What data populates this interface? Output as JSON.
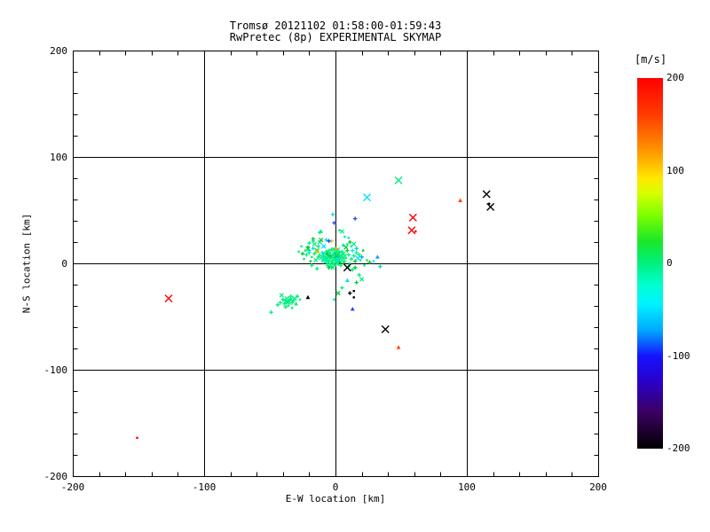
{
  "header": {
    "title": "Tromsø 20121102 01:58:00-01:59:43",
    "subtitle": "RwPretec (8p) EXPERIMENTAL SKYMAP"
  },
  "chart_data": {
    "type": "scatter",
    "title": "Tromsø 20121102 01:58:00-01:59:43",
    "subtitle": "RwPretec (8p) EXPERIMENTAL SKYMAP",
    "xlabel": "E-W location [km]",
    "ylabel": "N-S location [km]",
    "xlim": [
      -200,
      200
    ],
    "ylim": [
      -200,
      200
    ],
    "xticks": [
      -200,
      -100,
      0,
      100,
      200
    ],
    "yticks": [
      -200,
      -100,
      0,
      100,
      200
    ],
    "minor_tick_step": 20,
    "grid": true,
    "grid_lines_x": [
      -100,
      0,
      100
    ],
    "grid_lines_y": [
      -100,
      0,
      100
    ],
    "colorbar": {
      "label": "[m/s]",
      "lim": [
        -200,
        200
      ],
      "ticks": [
        200,
        100,
        0,
        -100,
        -200
      ],
      "stops": [
        [
          0,
          "#FF0000"
        ],
        [
          10,
          "#FF3C00"
        ],
        [
          20,
          "#FF9A00"
        ],
        [
          27,
          "#FFE700"
        ],
        [
          31,
          "#D8FF00"
        ],
        [
          37,
          "#7CFF00"
        ],
        [
          44,
          "#1BE729"
        ],
        [
          50,
          "#00F07E"
        ],
        [
          56,
          "#00FFD2"
        ],
        [
          61,
          "#00F2FF"
        ],
        [
          68,
          "#00AAFF"
        ],
        [
          75,
          "#1414FF"
        ],
        [
          82,
          "#2A00C8"
        ],
        [
          90,
          "#3C0064"
        ],
        [
          100,
          "#000000"
        ]
      ]
    },
    "palette": {
      "sg": "#00F07E",
      "gn": "#00C832",
      "cy": "#00E0FF",
      "te": "#00DCA8",
      "lb": "#00A0FF",
      "bl": "#2244FF",
      "bk": "#000000",
      "rd": "#FF0000",
      "ro": "#FF4500",
      "or": "#FFA000",
      "yl": "#CCD500"
    },
    "marker_legend": {
      "p": "plus",
      "x": "cross",
      "d": "dot",
      "t": "triangle"
    },
    "points": [
      [
        -2,
        3,
        "sg",
        "p"
      ],
      [
        0,
        2,
        "sg",
        "x"
      ],
      [
        -1,
        5,
        "sg",
        "p"
      ],
      [
        -3,
        1,
        "sg",
        "d"
      ],
      [
        1,
        4,
        "sg",
        "p"
      ],
      [
        -4,
        4,
        "sg",
        "x"
      ],
      [
        0,
        6,
        "sg",
        "p"
      ],
      [
        -2,
        0,
        "sg",
        "p"
      ],
      [
        2,
        2,
        "sg",
        "d"
      ],
      [
        -5,
        2,
        "sg",
        "p"
      ],
      [
        1,
        0,
        "sg",
        "x"
      ],
      [
        -1,
        -1,
        "sg",
        "p"
      ],
      [
        -3,
        6,
        "sg",
        "p"
      ],
      [
        2,
        6,
        "sg",
        "x"
      ],
      [
        -6,
        5,
        "sg",
        "p"
      ],
      [
        0,
        8,
        "sg",
        "d"
      ],
      [
        -2,
        8,
        "sg",
        "p"
      ],
      [
        3,
        4,
        "sg",
        "p"
      ],
      [
        -4,
        -1,
        "sg",
        "x"
      ],
      [
        -7,
        3,
        "sg",
        "p"
      ],
      [
        4,
        1,
        "sg",
        "d"
      ],
      [
        -1,
        10,
        "sg",
        "p"
      ],
      [
        2,
        9,
        "sg",
        "x"
      ],
      [
        -5,
        7,
        "sg",
        "p"
      ],
      [
        -8,
        6,
        "sg",
        "p"
      ],
      [
        3,
        7,
        "sg",
        "d"
      ],
      [
        -6,
        0,
        "sg",
        "p"
      ],
      [
        5,
        3,
        "sg",
        "x"
      ],
      [
        -3,
        -3,
        "sg",
        "p"
      ],
      [
        0,
        -2,
        "sg",
        "d"
      ],
      [
        -9,
        4,
        "sg",
        "p"
      ],
      [
        4,
        6,
        "sg",
        "p"
      ],
      [
        -7,
        8,
        "sg",
        "x"
      ],
      [
        1,
        11,
        "sg",
        "p"
      ],
      [
        -4,
        10,
        "sg",
        "d"
      ],
      [
        6,
        5,
        "sg",
        "p"
      ],
      [
        -2,
        -4,
        "sg",
        "x"
      ],
      [
        -10,
        7,
        "sg",
        "p"
      ],
      [
        5,
        8,
        "sg",
        "p"
      ],
      [
        2,
        -1,
        "sg",
        "d"
      ],
      [
        -6,
        -2,
        "sg",
        "p"
      ],
      [
        -11,
        5,
        "sg",
        "x"
      ],
      [
        3,
        10,
        "sg",
        "p"
      ],
      [
        -8,
        1,
        "sg",
        "d"
      ],
      [
        7,
        2,
        "sg",
        "p"
      ],
      [
        -1,
        13,
        "sg",
        "x"
      ],
      [
        -5,
        12,
        "sg",
        "p"
      ],
      [
        4,
        -2,
        "sg",
        "p"
      ],
      [
        -12,
        8,
        "sg",
        "d"
      ],
      [
        6,
        9,
        "sg",
        "x"
      ],
      [
        -9,
        9,
        "sg",
        "p"
      ],
      [
        0,
        14,
        "te",
        "p"
      ],
      [
        -3,
        13,
        "sg",
        "p"
      ],
      [
        8,
        5,
        "sg",
        "d"
      ],
      [
        -7,
        11,
        "sg",
        "p"
      ],
      [
        2,
        13,
        "sg",
        "x"
      ],
      [
        -13,
        6,
        "sg",
        "p"
      ],
      [
        5,
        11,
        "sg",
        "p"
      ],
      [
        -10,
        2,
        "sg",
        "d"
      ],
      [
        7,
        7,
        "sg",
        "x"
      ],
      [
        -4,
        7,
        "gn",
        "p"
      ],
      [
        1,
        7,
        "gn",
        "x"
      ],
      [
        -6,
        9,
        "gn",
        "p"
      ],
      [
        3,
        1,
        "gn",
        "d"
      ],
      [
        -8,
        4,
        "cy",
        "p"
      ],
      [
        2,
        4,
        "cy",
        "x"
      ],
      [
        -1,
        8,
        "te",
        "p"
      ],
      [
        -5,
        -4,
        "gn",
        "p"
      ],
      [
        6,
        0,
        "gn",
        "d"
      ],
      [
        -10,
        10,
        "cy",
        "p"
      ],
      [
        -16,
        9,
        "sg",
        "p"
      ],
      [
        -14,
        12,
        "gn",
        "x"
      ],
      [
        10,
        8,
        "sg",
        "p"
      ],
      [
        -18,
        6,
        "sg",
        "d"
      ],
      [
        9,
        12,
        "gn",
        "p"
      ],
      [
        -15,
        3,
        "sg",
        "x"
      ],
      [
        12,
        4,
        "sg",
        "p"
      ],
      [
        -17,
        14,
        "cy",
        "p"
      ],
      [
        11,
        0,
        "sg",
        "d"
      ],
      [
        -20,
        10,
        "sg",
        "p"
      ],
      [
        8,
        15,
        "gn",
        "x"
      ],
      [
        -13,
        16,
        "sg",
        "p"
      ],
      [
        14,
        7,
        "sg",
        "p"
      ],
      [
        -19,
        2,
        "gn",
        "d"
      ],
      [
        10,
        -3,
        "sg",
        "p"
      ],
      [
        -16,
        18,
        "sg",
        "x"
      ],
      [
        13,
        12,
        "cy",
        "p"
      ],
      [
        -22,
        8,
        "sg",
        "p"
      ],
      [
        9,
        18,
        "sg",
        "d"
      ],
      [
        15,
        2,
        "gn",
        "p"
      ],
      [
        -12,
        20,
        "sg",
        "x"
      ],
      [
        16,
        10,
        "sg",
        "p"
      ],
      [
        -21,
        15,
        "gn",
        "p"
      ],
      [
        12,
        16,
        "sg",
        "d"
      ],
      [
        -18,
        -2,
        "sg",
        "p"
      ],
      [
        17,
        5,
        "cy",
        "x"
      ],
      [
        -14,
        -5,
        "sg",
        "p"
      ],
      [
        11,
        20,
        "gn",
        "p"
      ],
      [
        -23,
        12,
        "sg",
        "d"
      ],
      [
        18,
        8,
        "sg",
        "p"
      ],
      [
        -11,
        22,
        "gn",
        "x"
      ],
      [
        13,
        -6,
        "sg",
        "p"
      ],
      [
        -20,
        19,
        "sg",
        "p"
      ],
      [
        19,
        3,
        "sg",
        "d"
      ],
      [
        -25,
        9,
        "gn",
        "p"
      ],
      [
        14,
        18,
        "sg",
        "x"
      ],
      [
        -17,
        21,
        "sg",
        "p"
      ],
      [
        16,
        14,
        "te",
        "p"
      ],
      [
        -24,
        4,
        "sg",
        "d"
      ],
      [
        15,
        -4,
        "gn",
        "p"
      ],
      [
        -14,
        11,
        "yl",
        "x"
      ],
      [
        0.5,
        13.5,
        "or",
        "p"
      ],
      [
        -3,
        21,
        "yl",
        "p"
      ],
      [
        9,
        -4,
        "bk",
        "x",
        1
      ],
      [
        -2,
        46,
        "cy",
        "p"
      ],
      [
        -1,
        38,
        "bl",
        "p"
      ],
      [
        5,
        30,
        "sg",
        "x"
      ],
      [
        3,
        31,
        "sg",
        "d"
      ],
      [
        -11,
        30,
        "sg",
        "t"
      ],
      [
        15,
        42,
        "bl",
        "p"
      ],
      [
        -17,
        23,
        "gn",
        "p"
      ],
      [
        -20,
        12,
        "cy",
        "p"
      ],
      [
        -7,
        22,
        "cy",
        "p"
      ],
      [
        -5,
        21,
        "bl",
        "p"
      ],
      [
        -21,
        14,
        "gn",
        "x"
      ],
      [
        16,
        -18,
        "gn",
        "p"
      ],
      [
        9,
        -16,
        "cy",
        "t"
      ],
      [
        11,
        -28,
        "bk",
        "p"
      ],
      [
        14,
        -26,
        "bk",
        "d"
      ],
      [
        14,
        -32,
        "bk",
        "d"
      ],
      [
        13,
        -43,
        "bl",
        "t"
      ],
      [
        -12,
        29,
        "sg",
        "p"
      ],
      [
        7,
        25,
        "sg",
        "d"
      ],
      [
        10,
        24,
        "cy",
        "d"
      ],
      [
        -9,
        16,
        "cy",
        "x"
      ],
      [
        6,
        17,
        "te",
        "p"
      ],
      [
        -26,
        16,
        "sg",
        "d"
      ],
      [
        20,
        6,
        "lb",
        "p"
      ],
      [
        22,
        -2,
        "sg",
        "d"
      ],
      [
        -28,
        11,
        "sg",
        "d"
      ],
      [
        21,
        12,
        "gn",
        "d"
      ],
      [
        24,
        3,
        "sg",
        "d"
      ],
      [
        26,
        1,
        "gn",
        "p"
      ],
      [
        34,
        -3,
        "te",
        "p"
      ],
      [
        32,
        6,
        "lb",
        "t"
      ],
      [
        18,
        -11,
        "sg",
        "p"
      ],
      [
        20,
        -15,
        "sg",
        "x"
      ],
      [
        29,
        2,
        "cy",
        "d"
      ],
      [
        5,
        -23,
        "sg",
        "p"
      ],
      [
        2,
        -28,
        "gn",
        "x"
      ],
      [
        -1,
        -34,
        "sg",
        "d"
      ],
      [
        -36,
        -36,
        "sg",
        "p"
      ],
      [
        -34,
        -34,
        "sg",
        "x"
      ],
      [
        -38,
        -35,
        "sg",
        "p"
      ],
      [
        -35,
        -38,
        "sg",
        "d"
      ],
      [
        -33,
        -37,
        "sg",
        "p"
      ],
      [
        -37,
        -33,
        "sg",
        "x"
      ],
      [
        -39,
        -38,
        "sg",
        "p"
      ],
      [
        -32,
        -35,
        "sg",
        "p"
      ],
      [
        -36,
        -40,
        "sg",
        "d"
      ],
      [
        -40,
        -34,
        "sg",
        "p"
      ],
      [
        -31,
        -33,
        "sg",
        "x"
      ],
      [
        -34,
        -31,
        "sg",
        "p"
      ],
      [
        -38,
        -41,
        "sg",
        "p"
      ],
      [
        -30,
        -38,
        "sg",
        "t"
      ],
      [
        -42,
        -37,
        "sg",
        "p"
      ],
      [
        -33,
        -42,
        "sg",
        "d"
      ],
      [
        -29,
        -31,
        "sg",
        "p"
      ],
      [
        -41,
        -30,
        "sg",
        "x"
      ],
      [
        -27,
        -34,
        "sg",
        "d"
      ],
      [
        -44,
        -39,
        "sg",
        "p"
      ],
      [
        -35,
        -35,
        "sg",
        "p"
      ],
      [
        -37,
        -37,
        "sg",
        "p"
      ],
      [
        -21,
        -32,
        "bk",
        "t"
      ],
      [
        -49,
        -46,
        "sg",
        "p"
      ],
      [
        48,
        78,
        "sg",
        "x",
        1
      ],
      [
        24,
        62,
        "cy",
        "x",
        1
      ],
      [
        59,
        43,
        "rd",
        "x",
        1
      ],
      [
        58,
        31,
        "rd",
        "x",
        1
      ],
      [
        61,
        30,
        "rd",
        "d"
      ],
      [
        95,
        59,
        "ro",
        "t"
      ],
      [
        115,
        65,
        "bk",
        "x",
        1
      ],
      [
        118,
        53,
        "bk",
        "x",
        1
      ],
      [
        117,
        56,
        "bk",
        "d"
      ],
      [
        38,
        -62,
        "bk",
        "x",
        1
      ],
      [
        48,
        -79,
        "ro",
        "t"
      ],
      [
        -127,
        -33,
        "rd",
        "x",
        1
      ],
      [
        -151,
        -164,
        "rd",
        "d"
      ]
    ]
  }
}
